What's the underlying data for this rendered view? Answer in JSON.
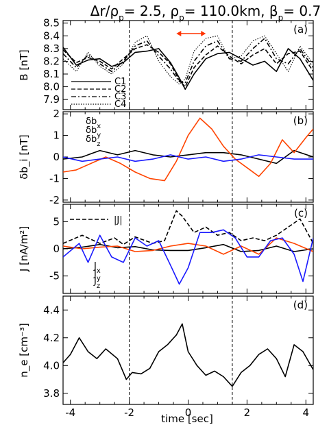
{
  "title": {
    "a": "Δr/ρ",
    "a_sub": "p",
    "b": "=   2.5, ρ",
    "b_sub": "p",
    "c": "=  110.0km, β",
    "c_sub": "p",
    "d": "= 0.7"
  },
  "xlabel": "time [sec]",
  "xticks": [
    -4,
    -2,
    0,
    2,
    4
  ],
  "xlim": [
    -4.25,
    4.25
  ],
  "vlines": [
    -2.0,
    1.5
  ],
  "arrow": {
    "x": [
      -0.4,
      0.6
    ],
    "color": "#ff3300"
  },
  "panels": [
    {
      "id": "a",
      "label": "(a)",
      "ylabel": "B [nT]",
      "ylim": [
        7.82,
        8.52
      ],
      "yticks": [
        "7.9",
        "8.0",
        "8.1",
        "8.2",
        "8.3",
        "8.4",
        "8.5"
      ],
      "legend": [
        "C1",
        "C2",
        "C3",
        "C4"
      ]
    },
    {
      "id": "b",
      "label": "(b)",
      "ylabel": "δb_i [nT]",
      "ylim": [
        -2.1,
        2.1
      ],
      "yticks": [
        "-2",
        "-1",
        "0",
        "1",
        "2"
      ],
      "legend": [
        {
          "base": "δb",
          "sub": "x",
          "color": "#000000"
        },
        {
          "base": "δb",
          "sub": "y",
          "color": "#ff4400"
        },
        {
          "base": "δb",
          "sub": "z",
          "color": "#1a1aff"
        }
      ]
    },
    {
      "id": "c",
      "label": "(c)",
      "ylabel": "J [nA/m²]",
      "ylim": [
        -8.2,
        8.2
      ],
      "yticks": [
        "-5",
        "0",
        "5"
      ],
      "legend_top": "|J|",
      "legend": [
        {
          "base": "J",
          "sub": "x",
          "color": "#000000"
        },
        {
          "base": "J",
          "sub": "y",
          "color": "#ff4400"
        },
        {
          "base": "J",
          "sub": "z",
          "color": "#1a1aff"
        }
      ]
    },
    {
      "id": "d",
      "label": "(d)",
      "ylabel": "n_e [cm⁻³]",
      "ylim": [
        3.72,
        4.5
      ],
      "yticks": [
        "3.8",
        "4.0",
        "4.2",
        "4.4"
      ]
    }
  ],
  "chart_data": [
    {
      "type": "line",
      "panel": "a",
      "series": [
        {
          "name": "C1",
          "style": "solid",
          "x": [
            -4.25,
            -3.8,
            -3.4,
            -3.0,
            -2.6,
            -2.2,
            -1.8,
            -1.4,
            -1.0,
            -0.6,
            -0.3,
            -0.1,
            0.2,
            0.6,
            1.0,
            1.4,
            1.8,
            2.2,
            2.6,
            3.0,
            3.4,
            3.8,
            4.25
          ],
          "y": [
            8.31,
            8.17,
            8.21,
            8.22,
            8.16,
            8.19,
            8.27,
            8.28,
            8.3,
            8.19,
            8.07,
            7.98,
            8.1,
            8.22,
            8.26,
            8.27,
            8.22,
            8.17,
            8.2,
            8.12,
            8.3,
            8.22,
            8.05
          ]
        },
        {
          "name": "C2",
          "style": "dashed",
          "x": [
            -4.25,
            -3.8,
            -3.4,
            -3.0,
            -2.6,
            -2.2,
            -1.8,
            -1.4,
            -1.0,
            -0.6,
            -0.3,
            -0.1,
            0.2,
            0.6,
            1.0,
            1.4,
            1.8,
            2.2,
            2.6,
            3.0,
            3.4,
            3.8,
            4.25
          ],
          "y": [
            8.29,
            8.19,
            8.23,
            8.2,
            8.14,
            8.22,
            8.3,
            8.33,
            8.27,
            8.18,
            8.05,
            8.0,
            8.15,
            8.25,
            8.32,
            8.24,
            8.18,
            8.25,
            8.3,
            8.18,
            8.26,
            8.28,
            8.12
          ]
        },
        {
          "name": "C3",
          "style": "dashdot",
          "x": [
            -4.25,
            -3.8,
            -3.4,
            -3.0,
            -2.6,
            -2.2,
            -1.8,
            -1.4,
            -1.0,
            -0.6,
            -0.3,
            -0.1,
            0.2,
            0.6,
            1.0,
            1.4,
            1.8,
            2.2,
            2.6,
            3.0,
            3.4,
            3.8,
            4.25
          ],
          "y": [
            8.26,
            8.15,
            8.25,
            8.18,
            8.12,
            8.2,
            8.32,
            8.36,
            8.24,
            8.14,
            8.04,
            8.03,
            8.2,
            8.32,
            8.36,
            8.22,
            8.2,
            8.3,
            8.38,
            8.22,
            8.18,
            8.3,
            8.15
          ]
        },
        {
          "name": "C4",
          "style": "dotted",
          "x": [
            -4.25,
            -3.8,
            -3.4,
            -3.0,
            -2.6,
            -2.2,
            -1.8,
            -1.4,
            -1.0,
            -0.6,
            -0.3,
            -0.1,
            0.2,
            0.6,
            1.0,
            1.4,
            1.8,
            2.2,
            2.6,
            3.0,
            3.4,
            3.8,
            4.25
          ],
          "y": [
            8.22,
            8.12,
            8.27,
            8.16,
            8.1,
            8.18,
            8.35,
            8.4,
            8.2,
            8.08,
            8.02,
            8.06,
            8.28,
            8.38,
            8.4,
            8.22,
            8.24,
            8.36,
            8.4,
            8.26,
            8.12,
            8.32,
            8.18
          ]
        }
      ]
    },
    {
      "type": "line",
      "panel": "b",
      "series": [
        {
          "name": "δbx",
          "color": "#000000",
          "x": [
            -4.25,
            -3.6,
            -3.0,
            -2.4,
            -1.8,
            -1.2,
            -0.6,
            0.0,
            0.6,
            1.2,
            1.8,
            2.4,
            3.0,
            3.6,
            4.25
          ],
          "y": [
            -0.1,
            0.0,
            0.3,
            0.1,
            0.3,
            0.1,
            0.0,
            0.1,
            0.2,
            0.2,
            0.1,
            -0.1,
            -0.3,
            0.3,
            0.0
          ]
        },
        {
          "name": "δby",
          "color": "#ff4400",
          "x": [
            -4.25,
            -3.8,
            -3.3,
            -2.8,
            -2.3,
            -1.8,
            -1.3,
            -0.8,
            -0.4,
            0.0,
            0.4,
            0.8,
            1.2,
            1.6,
            2.0,
            2.4,
            2.8,
            3.2,
            3.6,
            4.0,
            4.25
          ],
          "y": [
            -0.7,
            -0.6,
            -0.3,
            0.0,
            -0.3,
            -0.7,
            -1.0,
            -1.1,
            -0.2,
            1.0,
            1.8,
            1.3,
            0.5,
            -0.1,
            -0.5,
            -0.9,
            -0.3,
            0.8,
            0.2,
            0.9,
            1.3
          ]
        },
        {
          "name": "δbz",
          "color": "#1a1aff",
          "x": [
            -4.25,
            -3.6,
            -3.0,
            -2.4,
            -1.8,
            -1.2,
            -0.6,
            0.0,
            0.6,
            1.2,
            1.8,
            2.4,
            3.0,
            3.6,
            4.25
          ],
          "y": [
            0.0,
            -0.2,
            -0.1,
            0.0,
            -0.2,
            -0.1,
            0.1,
            -0.1,
            0.0,
            -0.2,
            -0.1,
            0.1,
            0.0,
            -0.1,
            -0.1
          ]
        }
      ]
    },
    {
      "type": "line",
      "panel": "c",
      "series": [
        {
          "name": "|J|",
          "style": "dashed",
          "color": "#000000",
          "x": [
            -4.25,
            -3.6,
            -3.0,
            -2.5,
            -2.2,
            -1.8,
            -1.2,
            -0.8,
            -0.4,
            -0.2,
            0.2,
            0.6,
            1.0,
            1.4,
            1.8,
            2.2,
            2.6,
            3.0,
            3.4,
            3.8,
            4.25
          ],
          "y": [
            1.0,
            2.5,
            1.0,
            2.0,
            0.8,
            2.2,
            1.0,
            1.5,
            7.0,
            6.0,
            3.0,
            4.0,
            2.5,
            3.0,
            1.5,
            2.0,
            1.5,
            2.5,
            4.0,
            5.5,
            1.0
          ]
        },
        {
          "name": "Jx",
          "color": "#000000",
          "x": [
            -4.25,
            -3.6,
            -3.0,
            -2.4,
            -1.8,
            -1.2,
            -0.6,
            0.0,
            0.6,
            1.2,
            1.8,
            2.4,
            3.0,
            3.6,
            4.25
          ],
          "y": [
            0.0,
            0.3,
            0.8,
            0.2,
            0.4,
            -0.2,
            -0.3,
            -0.3,
            0.2,
            0.8,
            -0.5,
            -0.3,
            0.5,
            -0.5,
            0.0
          ]
        },
        {
          "name": "Jy",
          "color": "#ff4400",
          "x": [
            -4.25,
            -3.6,
            -3.0,
            -2.4,
            -1.8,
            -1.2,
            -0.6,
            0.0,
            0.6,
            1.2,
            1.8,
            2.4,
            3.0,
            3.6,
            4.25
          ],
          "y": [
            0.5,
            0.0,
            0.3,
            0.5,
            -0.5,
            -0.3,
            0.5,
            1.0,
            0.5,
            -1.0,
            0.5,
            -1.0,
            2.0,
            1.0,
            -0.5
          ]
        },
        {
          "name": "Jz",
          "color": "#1a1aff",
          "x": [
            -4.25,
            -3.7,
            -3.4,
            -3.0,
            -2.6,
            -2.2,
            -1.8,
            -1.4,
            -1.0,
            -0.6,
            -0.3,
            0.0,
            0.4,
            0.8,
            1.2,
            1.6,
            2.0,
            2.4,
            2.8,
            3.2,
            3.6,
            3.9,
            4.25
          ],
          "y": [
            -1.5,
            1.0,
            -2.5,
            2.5,
            -1.5,
            -2.5,
            2.0,
            0.5,
            1.5,
            -3.0,
            -6.5,
            -3.5,
            3.0,
            3.0,
            3.5,
            2.0,
            -1.5,
            -1.5,
            1.5,
            2.0,
            -1.0,
            -6.0,
            2.0
          ]
        }
      ]
    },
    {
      "type": "line",
      "panel": "d",
      "series": [
        {
          "name": "ne",
          "color": "#000000",
          "x": [
            -4.25,
            -4.0,
            -3.7,
            -3.4,
            -3.1,
            -2.8,
            -2.4,
            -2.1,
            -1.9,
            -1.6,
            -1.3,
            -1.0,
            -0.7,
            -0.4,
            -0.2,
            0.0,
            0.3,
            0.6,
            0.9,
            1.2,
            1.5,
            1.8,
            2.1,
            2.4,
            2.7,
            3.0,
            3.3,
            3.6,
            3.9,
            4.25
          ],
          "y": [
            4.02,
            4.08,
            4.2,
            4.1,
            4.05,
            4.12,
            4.05,
            3.9,
            3.95,
            3.94,
            3.98,
            4.1,
            4.15,
            4.22,
            4.3,
            4.1,
            4.0,
            3.93,
            3.96,
            3.92,
            3.85,
            3.95,
            4.0,
            4.08,
            4.12,
            4.05,
            3.92,
            4.15,
            4.1,
            3.97
          ]
        }
      ]
    }
  ]
}
